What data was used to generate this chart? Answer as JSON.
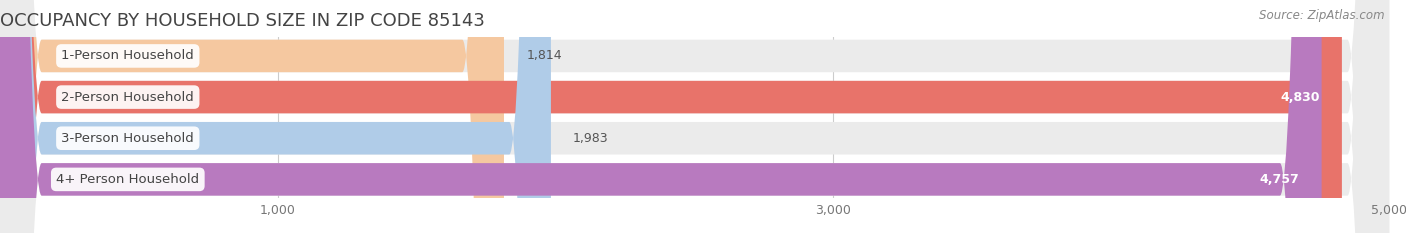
{
  "title": "OCCUPANCY BY HOUSEHOLD SIZE IN ZIP CODE 85143",
  "source": "Source: ZipAtlas.com",
  "categories": [
    "1-Person Household",
    "2-Person Household",
    "3-Person Household",
    "4+ Person Household"
  ],
  "values": [
    1814,
    4830,
    1983,
    4757
  ],
  "bar_colors": [
    "#f5c8a0",
    "#e8736a",
    "#b0cce8",
    "#b87abf"
  ],
  "value_labels": [
    "1,814",
    "4,830",
    "1,983",
    "4,757"
  ],
  "value_inside": [
    false,
    true,
    false,
    true
  ],
  "xlim_min": 0,
  "xlim_max": 5000,
  "xtick_positions": [
    1000,
    3000,
    5000
  ],
  "xtick_labels": [
    "1,000",
    "3,000",
    "5,000"
  ],
  "background_color": "#ffffff",
  "bar_bg_color": "#ebebeb",
  "title_fontsize": 13,
  "label_fontsize": 9.5,
  "value_fontsize": 9,
  "source_fontsize": 8.5,
  "title_color": "#444444",
  "source_color": "#888888",
  "label_text_color": "#444444",
  "grid_color": "#cccccc"
}
